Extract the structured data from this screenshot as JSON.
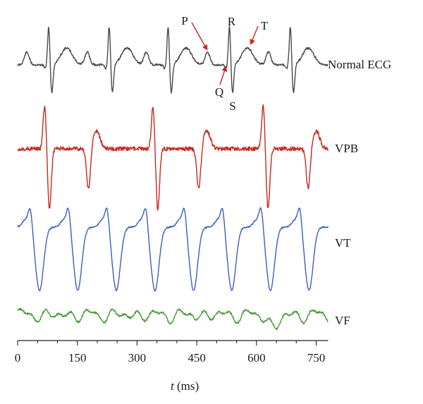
{
  "chart_data": {
    "type": "line",
    "title": "",
    "xlabel": "t (ms)",
    "xlabel_var": "t",
    "xlabel_unit": " (ms)",
    "xlim": [
      0,
      780
    ],
    "x_ticks": [
      0,
      150,
      300,
      450,
      600,
      750
    ],
    "grid": false,
    "colors": {
      "normal": "#4a4a4a",
      "vpb": "#c8281e",
      "vt": "#3a5fc0",
      "vf": "#4a9a3a",
      "annotation": "#c8281e",
      "axis": "#222222"
    },
    "series": [
      {
        "name": "Normal ECG",
        "key": "normal",
        "beats_ms": [
          78,
          230,
          378,
          532,
          685
        ]
      },
      {
        "name": "VPB",
        "key": "vpb",
        "ectopic_ms": [
          68,
          340,
          617
        ],
        "normal_ms": [
          178,
          455,
          730
        ]
      },
      {
        "name": "VT",
        "key": "vt",
        "beats_ms": [
          50,
          146,
          243,
          340,
          437,
          533,
          630,
          727
        ]
      },
      {
        "name": "VF",
        "key": "vf"
      }
    ],
    "annotations": {
      "P": "P",
      "Q": "Q",
      "R": "R",
      "S": "S",
      "T": "T"
    }
  }
}
